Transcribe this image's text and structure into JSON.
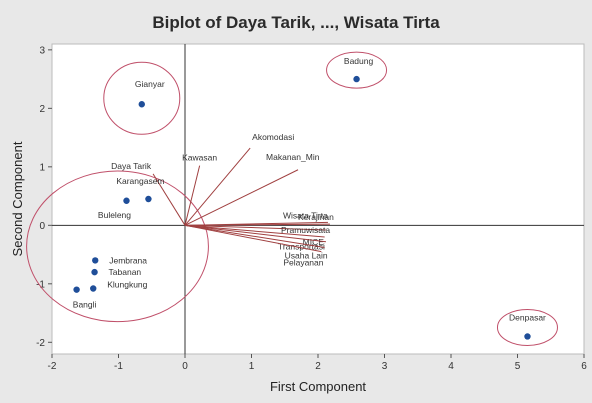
{
  "chart_data": {
    "type": "scatter",
    "title": "Biplot of Daya Tarik, ..., Wisata Tirta",
    "xlabel": "First Component",
    "ylabel": "Second Component",
    "xlim": [
      -2,
      6
    ],
    "ylim": [
      -2.2,
      3.1
    ],
    "x_ticks": [
      -2,
      -1,
      0,
      1,
      2,
      3,
      4,
      5,
      6
    ],
    "y_ticks": [
      -2,
      -1,
      0,
      1,
      2,
      3
    ],
    "grid": false,
    "reference_lines": [
      {
        "axis": "x",
        "value": 0
      },
      {
        "axis": "y",
        "value": 0
      }
    ],
    "point_color": "#1f4e99",
    "vector_color": "#a04040",
    "ellipse_color": "#c0506a",
    "points": [
      {
        "label": "Badung",
        "x": 2.58,
        "y": 2.5
      },
      {
        "label": "Gianyar",
        "x": -0.65,
        "y": 2.07
      },
      {
        "label": "Karangasem",
        "x": -0.55,
        "y": 0.45
      },
      {
        "label": "Buleleng",
        "x": -0.88,
        "y": 0.42
      },
      {
        "label": "Jembrana",
        "x": -1.35,
        "y": -0.6
      },
      {
        "label": "Tabanan",
        "x": -1.36,
        "y": -0.8
      },
      {
        "label": "Klungkung",
        "x": -1.38,
        "y": -1.08
      },
      {
        "label": "Bangli",
        "x": -1.63,
        "y": -1.1
      },
      {
        "label": "Denpasar",
        "x": 5.15,
        "y": -1.9
      }
    ],
    "vectors": [
      {
        "label": "Daya Tarik",
        "x": -0.48,
        "y": 0.88
      },
      {
        "label": "Kawasan",
        "x": 0.22,
        "y": 1.02
      },
      {
        "label": "Akomodasi",
        "x": 0.98,
        "y": 1.32
      },
      {
        "label": "Makanan_Min",
        "x": 1.7,
        "y": 0.95
      },
      {
        "label": "Wisata Tirta",
        "x": 2.15,
        "y": 0.05
      },
      {
        "label": "Kerajinan",
        "x": 2.18,
        "y": 0.02
      },
      {
        "label": "Pramuwisata",
        "x": 2.12,
        "y": -0.08
      },
      {
        "label": "MICE",
        "x": 2.1,
        "y": -0.2
      },
      {
        "label": "Transportasi",
        "x": 2.12,
        "y": -0.28
      },
      {
        "label": "Usaha Lain",
        "x": 2.1,
        "y": -0.38
      },
      {
        "label": "Pelayanan",
        "x": 2.05,
        "y": -0.45
      }
    ],
    "groups": [
      {
        "members": [
          "Gianyar"
        ]
      },
      {
        "members": [
          "Badung"
        ]
      },
      {
        "members": [
          "Karangasem",
          "Buleleng",
          "Jembrana",
          "Tabanan",
          "Klungkung",
          "Bangli"
        ]
      },
      {
        "members": [
          "Denpasar"
        ]
      }
    ]
  }
}
